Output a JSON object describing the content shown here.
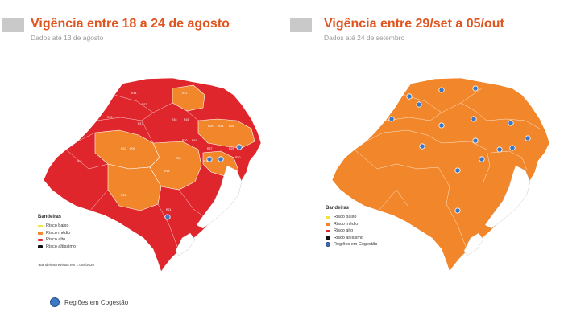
{
  "colors": {
    "title": "#e0541f",
    "risco_baixo": "#f2e53c",
    "risco_medio": "#f2862a",
    "risco_alto": "#e0262d",
    "risco_altissimo": "#111111",
    "cogestao": "#3d78c4",
    "lagoa": "#ffffff"
  },
  "left_map": {
    "title": "Vigência entre 18 a 24 de agosto",
    "subtitle": "Dados até 13 de agosto",
    "legend": {
      "heading": "Bandeiras",
      "items": [
        "Risco baixo",
        "Risco médio",
        "Risco alto",
        "Risco altíssimo"
      ]
    },
    "note": "*Bandeiras revistas em 17/08/2020",
    "region_labels": [
      "R14",
      "R12",
      "R11",
      "R13",
      "R17",
      "R16",
      "R15",
      "R10",
      "R09",
      "R20",
      "R19",
      "R01",
      "R02",
      "R03",
      "R05",
      "R06",
      "R07",
      "R08",
      "R18",
      "R04",
      "R21",
      "R22",
      "R23",
      "R24",
      "R25",
      "R26",
      "R27",
      "R28",
      "R29",
      "R30"
    ]
  },
  "right_map": {
    "title": "Vigência entre 29/set a 05/out",
    "subtitle": "Dados até 24 de setembro",
    "legend": {
      "heading": "Bandeiras",
      "items": [
        "Risco baixo",
        "Risco médio",
        "Risco alto",
        "Risco altíssimo",
        "Regiões em Cogestão"
      ]
    }
  },
  "bottom_legend": "Regiões em Cogestão"
}
